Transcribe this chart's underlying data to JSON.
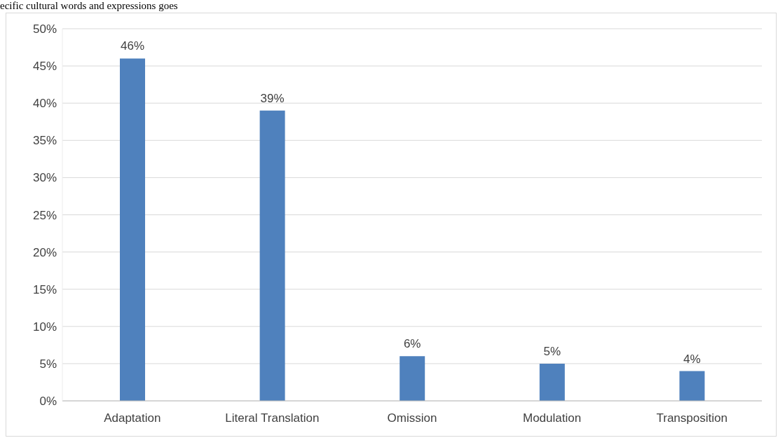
{
  "chart_data": {
    "type": "bar",
    "categories": [
      "Adaptation",
      "Literal Translation",
      "Omission",
      "Modulation",
      "Transposition"
    ],
    "values": [
      46,
      39,
      6,
      5,
      4
    ],
    "value_labels": [
      "46%",
      "39%",
      "6%",
      "5%",
      "4%"
    ],
    "color": "#4f81bd",
    "ylim": [
      0,
      50
    ],
    "yticks": [
      {
        "value": 0,
        "label": "0%"
      },
      {
        "value": 5,
        "label": "5%"
      },
      {
        "value": 10,
        "label": "10%"
      },
      {
        "value": 15,
        "label": "15%"
      },
      {
        "value": 20,
        "label": "20%"
      },
      {
        "value": 25,
        "label": "25%"
      },
      {
        "value": 30,
        "label": "30%"
      },
      {
        "value": 35,
        "label": "35%"
      },
      {
        "value": 40,
        "label": "40%"
      },
      {
        "value": 45,
        "label": "45%"
      },
      {
        "value": 50,
        "label": "50%"
      }
    ],
    "grid": "y",
    "annotations": [
      "ecific cultural words and expressions goes"
    ]
  }
}
